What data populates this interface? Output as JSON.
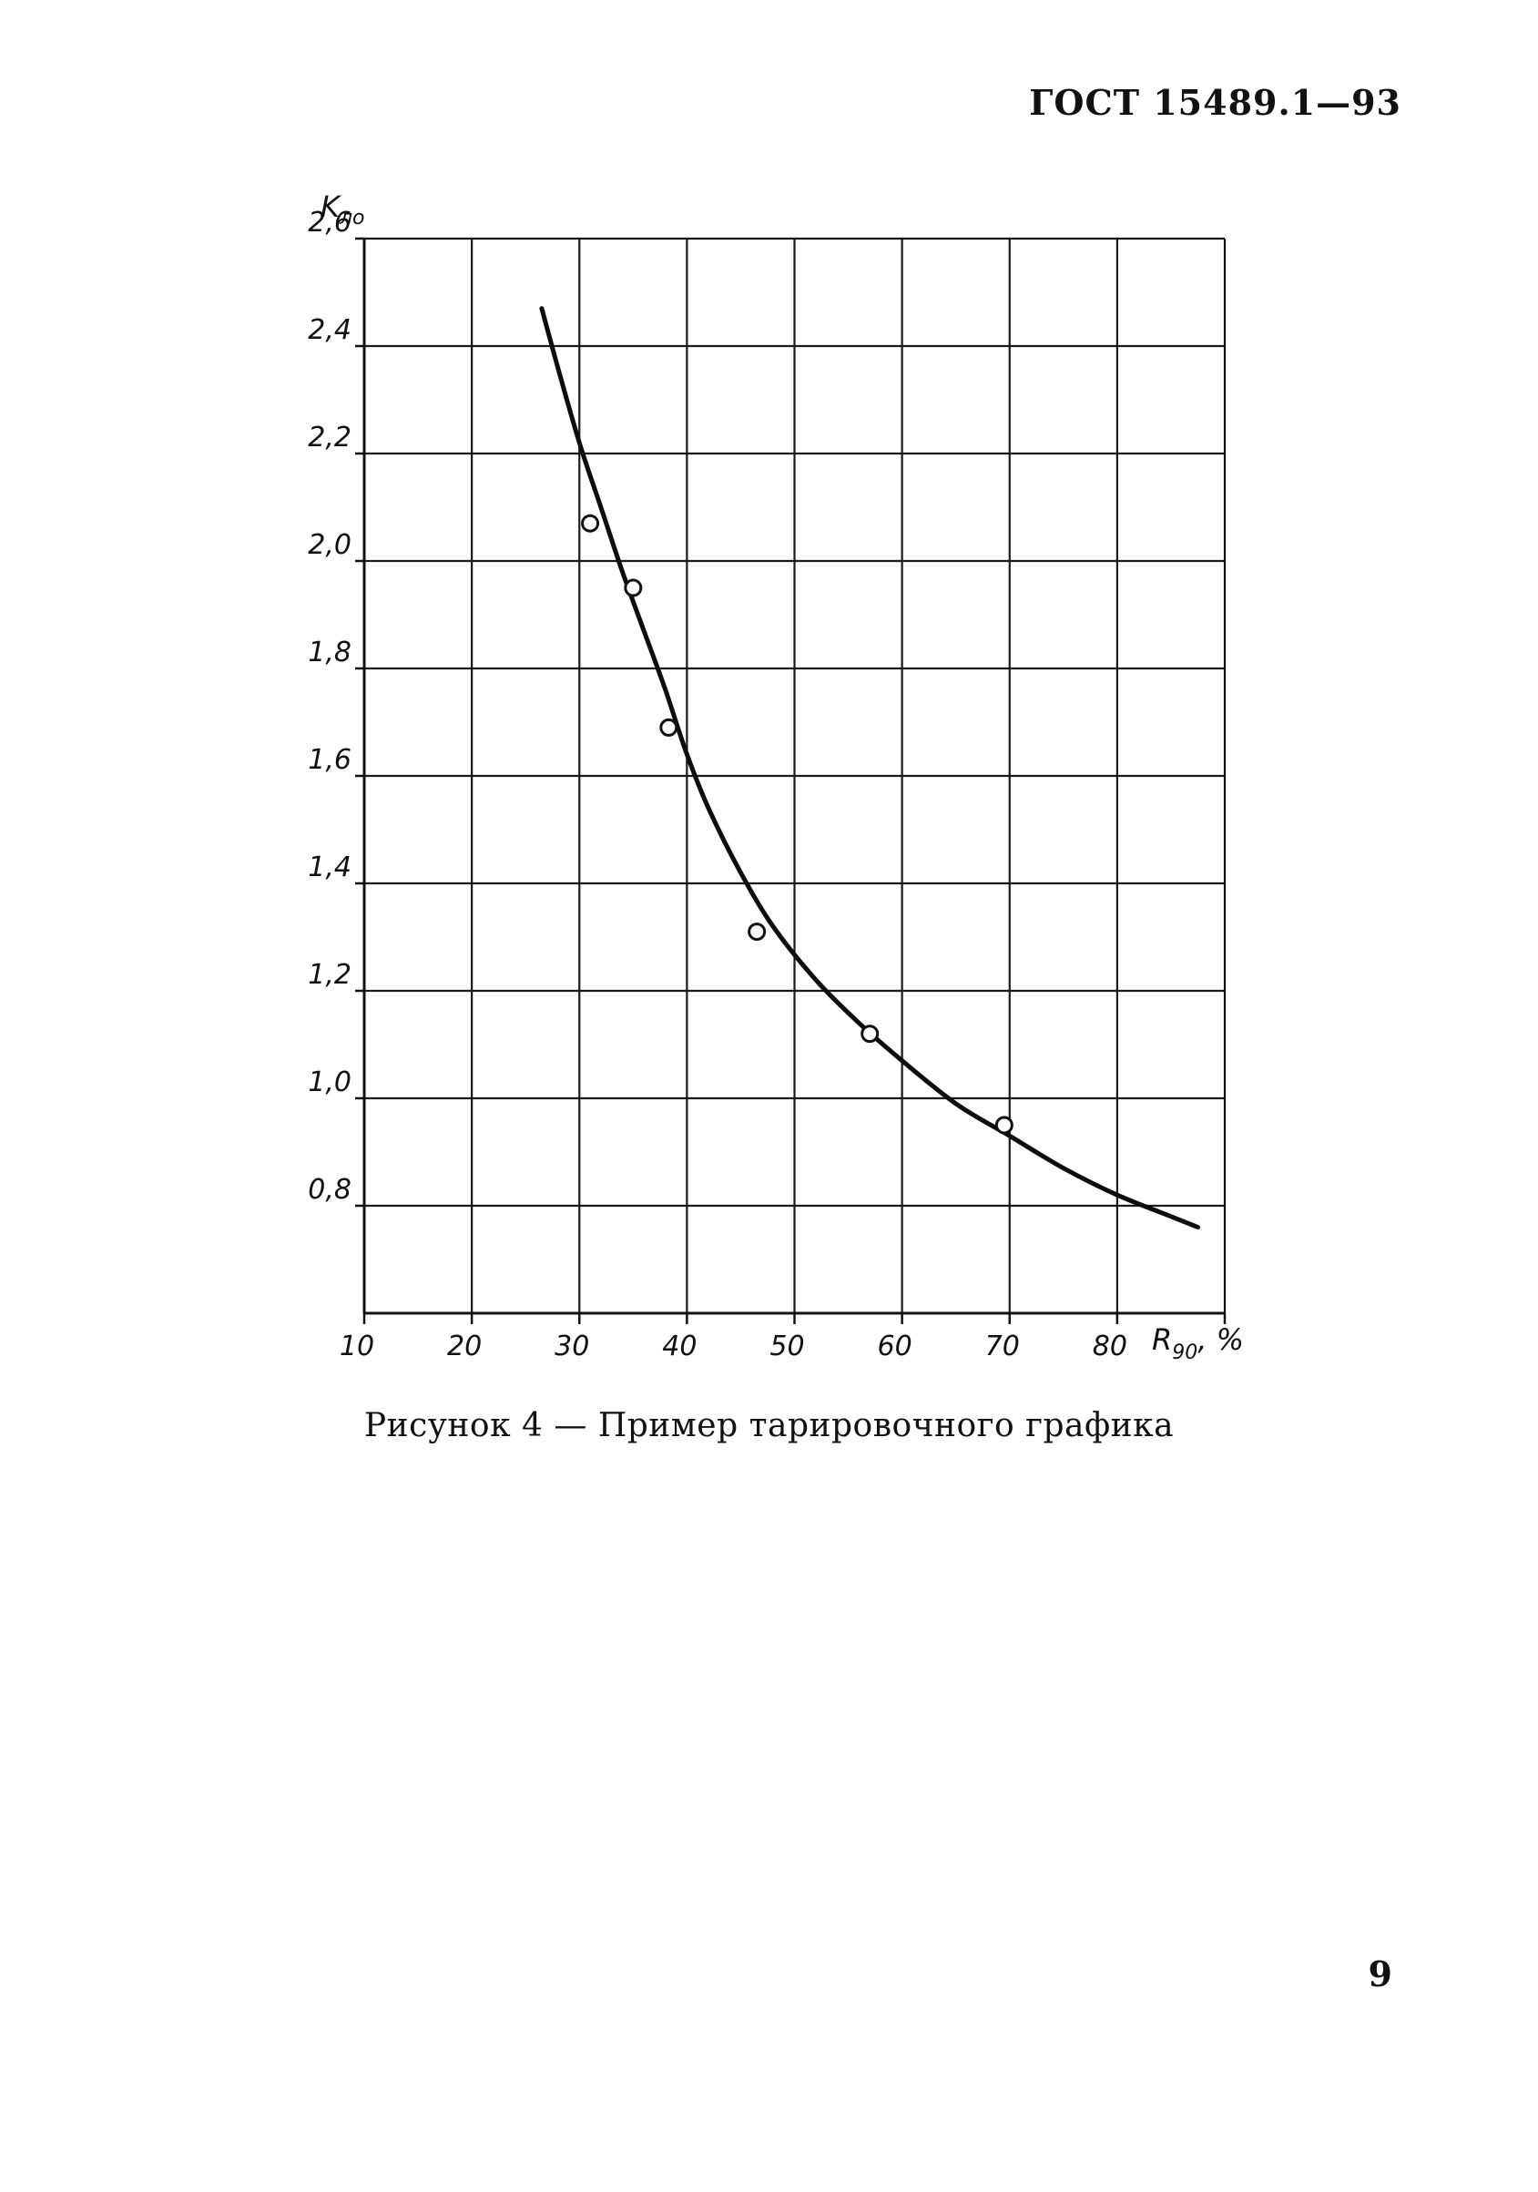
{
  "header": {
    "code": "ГОСТ 15489.1—93"
  },
  "caption": "Рисунок 4 — Пример тарировочного графика",
  "page_number": "9",
  "chart_data": {
    "type": "line",
    "xlabel": "R",
    "xlabel_sub": "90",
    "xlabel_unit": ", %",
    "ylabel": "K",
    "ylabel_sub": "ло",
    "x_ticks": [
      "10",
      "20",
      "30",
      "40",
      "50",
      "60",
      "70",
      "80"
    ],
    "y_ticks": [
      "0,8",
      "1,0",
      "1,2",
      "1,4",
      "1,6",
      "1,8",
      "2,0",
      "2,2",
      "2,4",
      "2,6"
    ],
    "xlim": [
      10,
      90
    ],
    "ylim": [
      0.6,
      2.6
    ],
    "grid": true,
    "series": [
      {
        "kind": "curve",
        "x": [
          26.5,
          28,
          30,
          32,
          34,
          36,
          38,
          40,
          42,
          45,
          48,
          52,
          56,
          60,
          65,
          70,
          75,
          80,
          85,
          87.5
        ],
        "y": [
          2.47,
          2.36,
          2.22,
          2.1,
          1.98,
          1.87,
          1.76,
          1.64,
          1.54,
          1.42,
          1.32,
          1.22,
          1.14,
          1.07,
          0.99,
          0.93,
          0.87,
          0.82,
          0.78,
          0.76
        ]
      },
      {
        "kind": "points",
        "x": [
          31,
          35,
          38.3,
          46.5,
          57,
          69.5
        ],
        "y": [
          2.07,
          1.95,
          1.69,
          1.31,
          1.12,
          0.95
        ]
      }
    ]
  }
}
